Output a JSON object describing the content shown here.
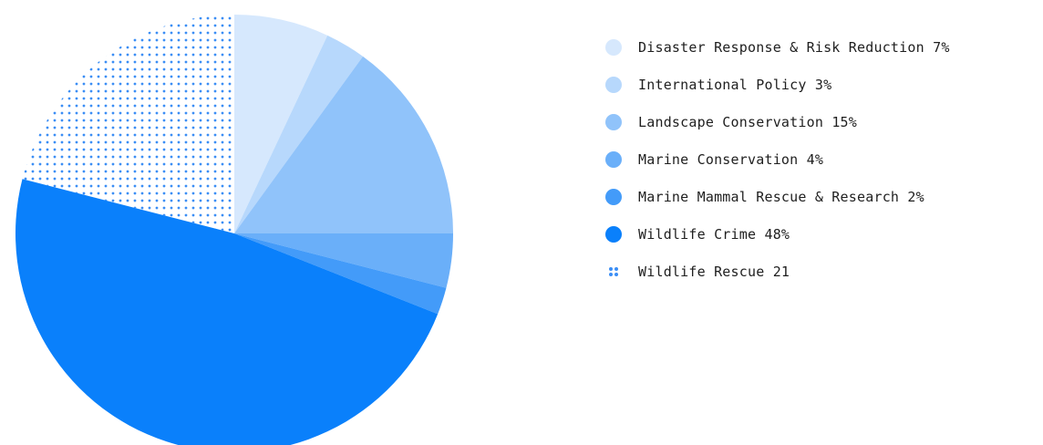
{
  "chart_data": {
    "type": "pie",
    "title": "",
    "start_angle_deg": -90,
    "direction": "clockwise",
    "legend_position": "right",
    "slices": [
      {
        "label": "Disaster Response & Risk Reduction",
        "value_text": "7%",
        "value": 7,
        "color": "#d6e8fd",
        "pattern": "solid"
      },
      {
        "label": "International Policy",
        "value_text": "3%",
        "value": 3,
        "color": "#b7d8fc",
        "pattern": "solid"
      },
      {
        "label": "Landscape Conservation",
        "value_text": "15%",
        "value": 15,
        "color": "#90c3fa",
        "pattern": "solid"
      },
      {
        "label": "Marine Conservation",
        "value_text": "4%",
        "value": 4,
        "color": "#6aaff9",
        "pattern": "solid"
      },
      {
        "label": "Marine Mammal Rescue & Research",
        "value_text": "2%",
        "value": 2,
        "color": "#439bf9",
        "pattern": "solid"
      },
      {
        "label": "Wildlife Crime",
        "value_text": "48%",
        "value": 48,
        "color": "#0a80fb",
        "pattern": "solid"
      },
      {
        "label": "Wildlife Rescue",
        "value_text": "21",
        "value": 21,
        "color": "#3b8ef5",
        "pattern": "dots"
      }
    ]
  }
}
